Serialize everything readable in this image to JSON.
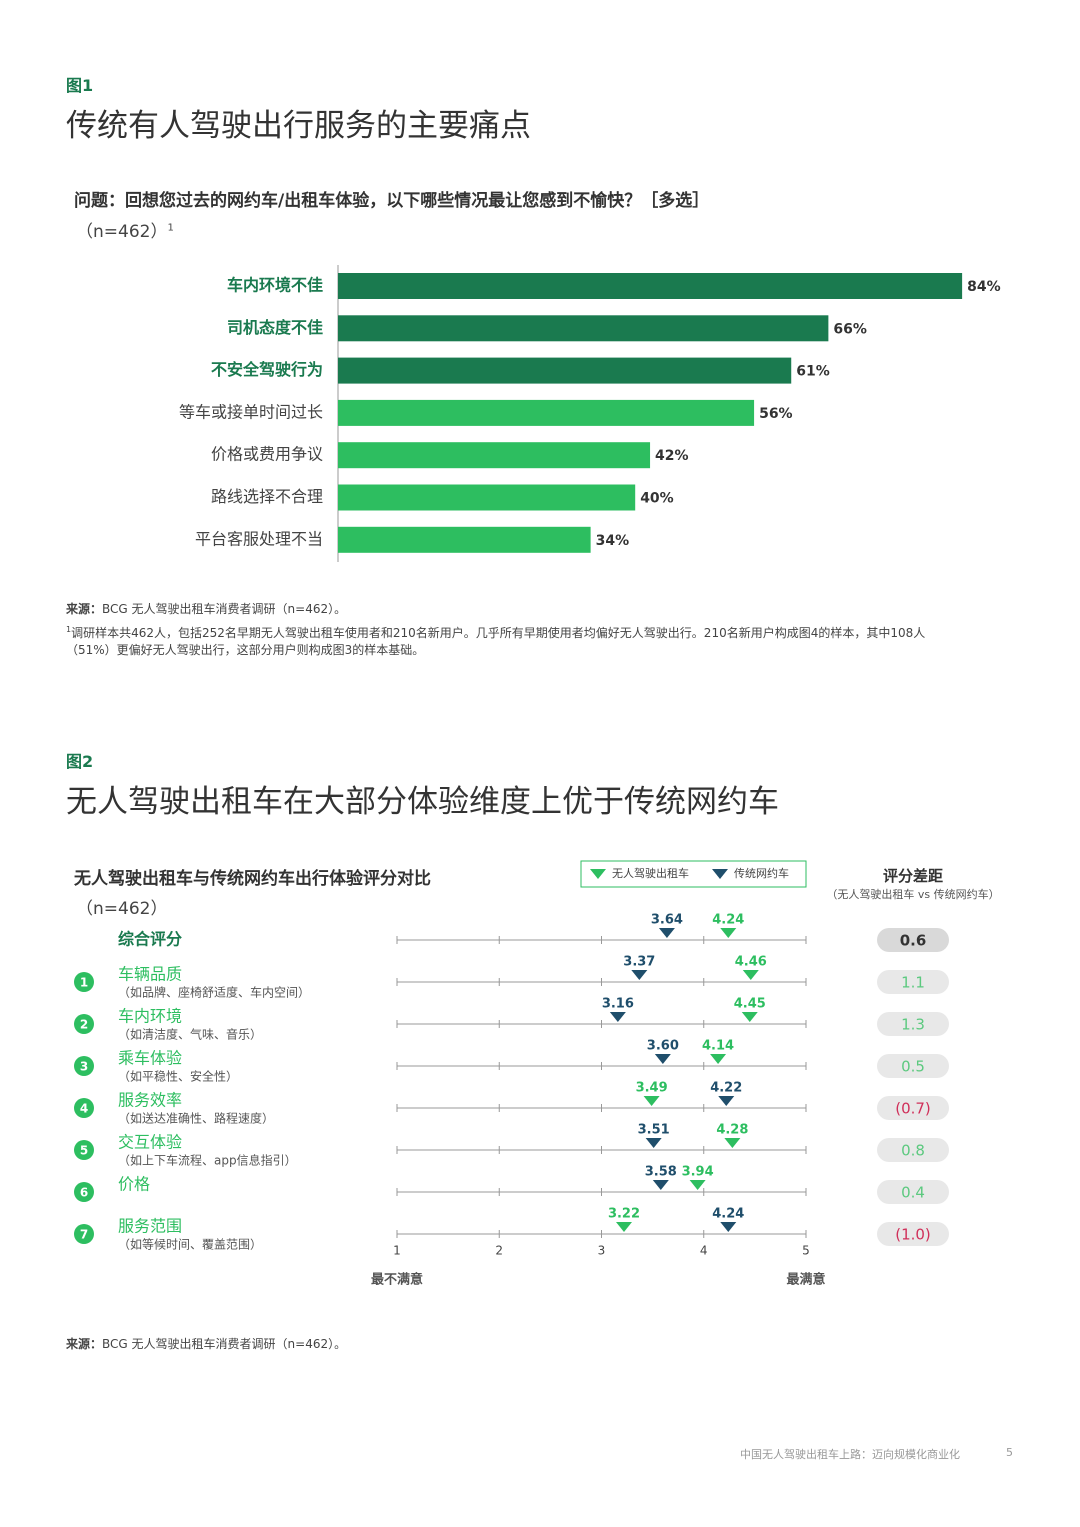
{
  "figures": [
    {
      "label": "图1",
      "title": "传统有人驾驶出行服务的主要痛点"
    },
    {
      "label": "图2",
      "title": "无人驾驶出租车在大部分体验维度上优于传统网约车"
    }
  ],
  "chart_data": [
    {
      "type": "bar",
      "title": "问题：回想您过去的网约车/出租车体验，以下哪些情况最让您感到不愉快？［多选］",
      "subtitle": "（n=462）",
      "subtitle_note": "1",
      "categories": [
        "车内环境不佳",
        "司机态度不佳",
        "不安全驾驶行为",
        "等车或接单时间过长",
        "价格或费用争议",
        "路线选择不合理",
        "平台客服处理不当"
      ],
      "values": [
        84,
        66,
        61,
        56,
        42,
        40,
        34
      ],
      "value_labels": [
        "84%",
        "66%",
        "61%",
        "56%",
        "42%",
        "40%",
        "34%"
      ],
      "colors": [
        "#1a7a4f",
        "#1a7a4f",
        "#1a7a4f",
        "#2dbe60",
        "#2dbe60",
        "#2dbe60",
        "#2dbe60"
      ],
      "highlight": [
        true,
        true,
        true,
        false,
        false,
        false,
        false
      ]
    },
    {
      "type": "dot",
      "title": "无人驾驶出租车与传统网约车出行体验评分对比",
      "subtitle": "（n=462）",
      "categories": [
        "综合评分",
        "车辆品质",
        "车内环境",
        "乘车体验",
        "服务效率",
        "交互体验",
        "价格",
        "服务范围"
      ],
      "category_numbers": [
        null,
        "1",
        "2",
        "3",
        "4",
        "5",
        "6",
        "7"
      ],
      "category_notes": [
        null,
        "（如品牌、座椅舒适度、车内空间）",
        "（如清洁度、气味、音乐）",
        "（如平稳性、安全性）",
        "（如送达准确性、路程速度）",
        "（如上下车流程、app信息指引）",
        null,
        "（如等候时间、覆盖范围）"
      ],
      "series": [
        {
          "name": "无人驾驶出租车",
          "color": "#2dbe60",
          "values": [
            4.24,
            4.46,
            4.45,
            4.14,
            3.49,
            4.28,
            3.94,
            3.22
          ],
          "value_labels": [
            "4.24",
            "4.46",
            "4.45",
            "4.14",
            "3.49",
            "4.28",
            "3.94",
            "3.22"
          ]
        },
        {
          "name": "传统网约车",
          "color": "#1f4e6b",
          "values": [
            3.64,
            3.37,
            3.16,
            3.6,
            4.22,
            3.51,
            3.58,
            4.24
          ],
          "value_labels": [
            "3.64",
            "3.37",
            "3.16",
            "3.60",
            "4.22",
            "3.51",
            "3.58",
            "4.24"
          ]
        }
      ],
      "xlim": [
        1,
        5
      ],
      "xticks": [
        1,
        2,
        3,
        4,
        5
      ],
      "xlabel_min": "最不满意",
      "xlabel_max": "最满意",
      "gap_title": "评分差距",
      "gap_subtitle": "（无人驾驶出租车 vs 传统网约车）",
      "gaps": [
        0.6,
        1.1,
        1.3,
        0.5,
        -0.7,
        0.8,
        0.4,
        -1.0
      ],
      "gap_labels": [
        "0.6",
        "1.1",
        "1.3",
        "0.5",
        "(0.7)",
        "0.8",
        "0.4",
        "(1.0)"
      ]
    }
  ],
  "notes": {
    "source_label": "来源：",
    "source": "BCG 无人驾驶出租车消费者调研（n=462）。",
    "footnote_mark": "1",
    "footnote": "调研样本共462人，包括252名早期无人驾驶出租车使用者和210名新用户。几乎所有早期使用者均偏好无人驾驶出行。210名新用户构成图4的样本，其中108人（51%）更偏好无人驾驶出行，这部分用户则构成图3的样本基础。",
    "source2_label": "来源：",
    "source2": "BCG 无人驾驶出租车消费者调研（n=462）。"
  },
  "footer": {
    "text": "中国无人驾驶出租车上路：迈向规模化商业化",
    "page": "5"
  }
}
